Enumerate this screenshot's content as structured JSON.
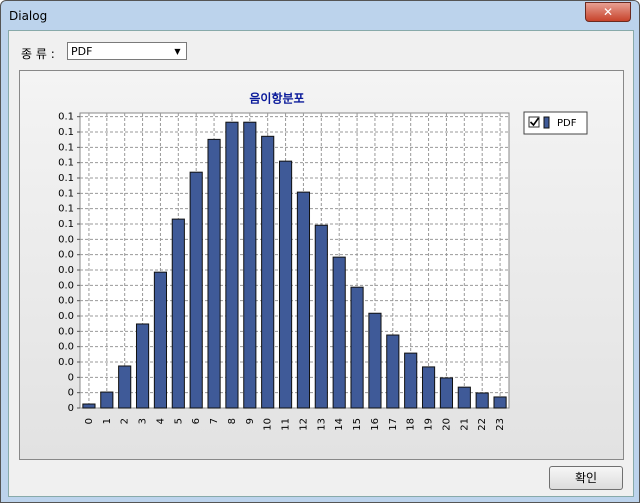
{
  "window": {
    "title": "Dialog"
  },
  "type_label": "종 류 :",
  "type_select": "PDF",
  "chart_data": {
    "type": "bar",
    "title": "음이항분포",
    "categories": [
      "0",
      "1",
      "2",
      "3",
      "4",
      "5",
      "6",
      "7",
      "8",
      "9",
      "10",
      "11",
      "12",
      "13",
      "14",
      "15",
      "16",
      "17",
      "18",
      "19",
      "20",
      "21",
      "22",
      "23"
    ],
    "series": [
      {
        "name": "PDF",
        "color": "#3f5a98",
        "values": [
          0.0013,
          0.0052,
          0.0137,
          0.0274,
          0.0443,
          0.0616,
          0.0769,
          0.0876,
          0.0932,
          0.0932,
          0.0886,
          0.0805,
          0.0704,
          0.0596,
          0.0492,
          0.0394,
          0.0309,
          0.0238,
          0.0179,
          0.0134,
          0.0098,
          0.0068,
          0.0049,
          0.0036
        ]
      }
    ],
    "ylim": [
      0,
      0.0962
    ],
    "yticks": [
      {
        "value": 0,
        "label": "0"
      },
      {
        "value": 0.005,
        "label": "0"
      },
      {
        "value": 0.01,
        "label": "0"
      },
      {
        "value": 0.015,
        "label": "0.0"
      },
      {
        "value": 0.02,
        "label": "0.0"
      },
      {
        "value": 0.025,
        "label": "0.0"
      },
      {
        "value": 0.03,
        "label": "0.0"
      },
      {
        "value": 0.035,
        "label": "0.0"
      },
      {
        "value": 0.04,
        "label": "0.0"
      },
      {
        "value": 0.045,
        "label": "0.0"
      },
      {
        "value": 0.05,
        "label": "0.0"
      },
      {
        "value": 0.055,
        "label": "0.0"
      },
      {
        "value": 0.06,
        "label": "0.1"
      },
      {
        "value": 0.065,
        "label": "0.1"
      },
      {
        "value": 0.07,
        "label": "0.1"
      },
      {
        "value": 0.075,
        "label": "0.1"
      },
      {
        "value": 0.08,
        "label": "0.1"
      },
      {
        "value": 0.085,
        "label": "0.1"
      },
      {
        "value": 0.09,
        "label": "0.1"
      },
      {
        "value": 0.095,
        "label": "0.1"
      }
    ],
    "grid": true,
    "legend": "right"
  },
  "button": "확인"
}
